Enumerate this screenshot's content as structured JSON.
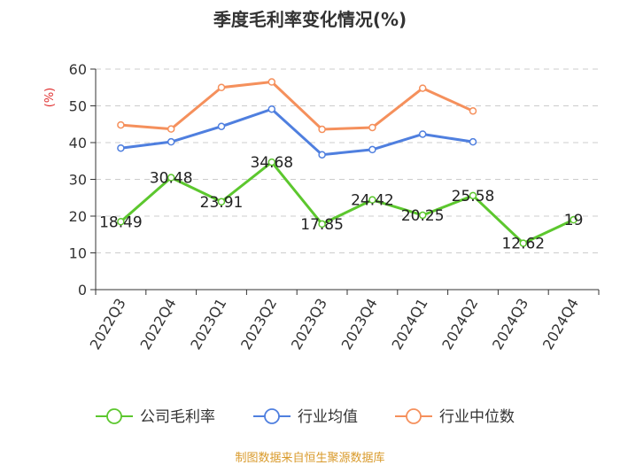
{
  "chart_data": {
    "type": "line",
    "title": "季度毛利率变化情况(%)",
    "ylabel": "(%)",
    "xlabel": "",
    "ylim": [
      0,
      60
    ],
    "yticks": [
      0,
      10,
      20,
      30,
      40,
      50,
      60
    ],
    "grid": true,
    "legend": "bottom",
    "categories": [
      "2022Q3",
      "2022Q4",
      "2023Q1",
      "2023Q2",
      "2023Q3",
      "2023Q4",
      "2024Q1",
      "2024Q2",
      "2024Q3",
      "2024Q4"
    ],
    "series": [
      {
        "name": "公司毛利率",
        "color": "#5cc72e",
        "show_labels": true,
        "labels": [
          "18.49",
          "30.48",
          "23.91",
          "34.68",
          "17.85",
          "24.42",
          "20.25",
          "25.58",
          "12.62",
          "19"
        ],
        "values": [
          18.49,
          30.48,
          23.91,
          34.68,
          17.85,
          24.42,
          20.25,
          25.58,
          12.62,
          19
        ]
      },
      {
        "name": "行业均值",
        "color": "#4f7fdf",
        "show_labels": false,
        "values": [
          38.5,
          40.2,
          44.4,
          49.1,
          36.7,
          38.1,
          42.3,
          40.2,
          null,
          null
        ]
      },
      {
        "name": "行业中位数",
        "color": "#f5905c",
        "show_labels": false,
        "values": [
          44.8,
          43.7,
          55.0,
          56.5,
          43.6,
          44.1,
          54.8,
          48.6,
          null,
          null
        ]
      }
    ]
  },
  "source": "制图数据来自恒生聚源数据库"
}
